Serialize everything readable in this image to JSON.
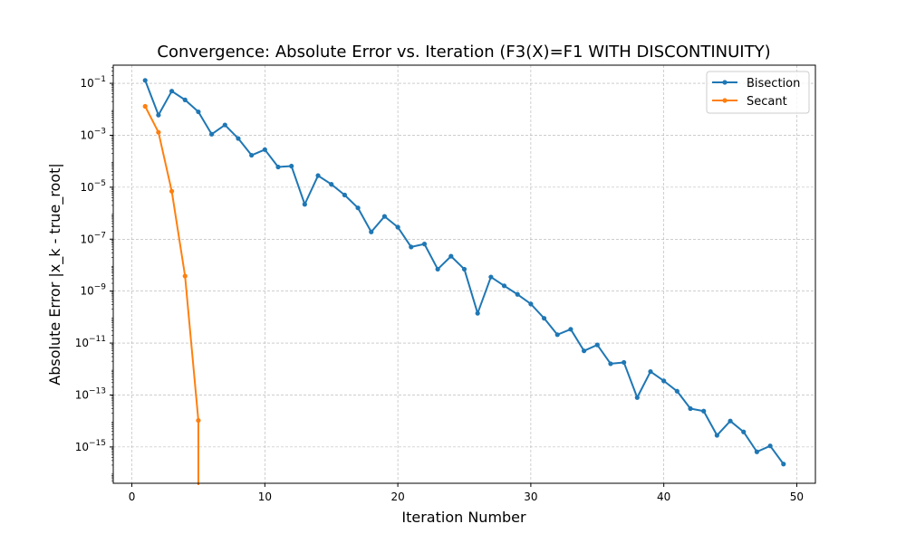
{
  "chart_data": {
    "type": "line",
    "title": "Convergence: Absolute Error vs. Iteration (F3(X)=F1 WITH DISCONTINUITY)",
    "xlabel": "Iteration Number",
    "ylabel": "Absolute Error |x_k - true_root|",
    "xlim": [
      -1.4,
      51.4
    ],
    "ylim": [
      4e-17,
      0.5
    ],
    "yscale": "log",
    "grid": true,
    "legend_position": "top-right",
    "x_ticks": [
      0,
      10,
      20,
      30,
      40,
      50
    ],
    "x_tick_labels": [
      "0",
      "10",
      "20",
      "30",
      "40",
      "50"
    ],
    "y_ticks": [
      0.1,
      0.001,
      1e-05,
      1e-07,
      1e-09,
      1e-11,
      1e-13,
      1e-15
    ],
    "y_tick_labels": [
      {
        "base": "10",
        "exp": "−1"
      },
      {
        "base": "10",
        "exp": "−3"
      },
      {
        "base": "10",
        "exp": "−5"
      },
      {
        "base": "10",
        "exp": "−7"
      },
      {
        "base": "10",
        "exp": "−9"
      },
      {
        "base": "10",
        "exp": "−11"
      },
      {
        "base": "10",
        "exp": "−13"
      },
      {
        "base": "10",
        "exp": "−15"
      }
    ],
    "series": [
      {
        "name": "Bisection",
        "color": "#1f77b4",
        "x": [
          1,
          2,
          3,
          4,
          5,
          6,
          7,
          8,
          9,
          10,
          11,
          12,
          13,
          14,
          15,
          16,
          17,
          18,
          19,
          20,
          21,
          22,
          23,
          24,
          25,
          26,
          27,
          28,
          29,
          30,
          31,
          32,
          33,
          34,
          35,
          36,
          37,
          38,
          39,
          40,
          41,
          42,
          43,
          44,
          45,
          46,
          47,
          48,
          49
        ],
        "y": [
          0.13,
          0.006,
          0.05,
          0.023,
          0.008,
          0.0011,
          0.0025,
          0.00075,
          0.00017,
          0.00028,
          6e-05,
          6.5e-05,
          2.2e-06,
          2.8e-05,
          1.3e-05,
          5e-06,
          1.6e-06,
          1.9e-07,
          7.5e-07,
          2.9e-07,
          5e-08,
          6.5e-08,
          7e-09,
          2.2e-08,
          7e-09,
          1.4e-10,
          3.5e-09,
          1.6e-09,
          7.5e-10,
          3.2e-10,
          9e-11,
          2.1e-11,
          3.4e-11,
          5e-12,
          8.5e-12,
          1.6e-12,
          1.8e-12,
          8e-14,
          8e-13,
          3.5e-13,
          1.4e-13,
          3e-14,
          2.4e-14,
          2.8e-15,
          1e-14,
          3.8e-15,
          6.5e-16,
          1.1e-15,
          2.2e-16
        ]
      },
      {
        "name": "Secant",
        "color": "#ff7f0e",
        "x": [
          1,
          2,
          3,
          4,
          5
        ],
        "y": [
          0.013,
          0.0013,
          7e-06,
          3.8e-09,
          1.05e-14
        ],
        "tail_x": 5,
        "tail_to_zero": true
      }
    ]
  }
}
